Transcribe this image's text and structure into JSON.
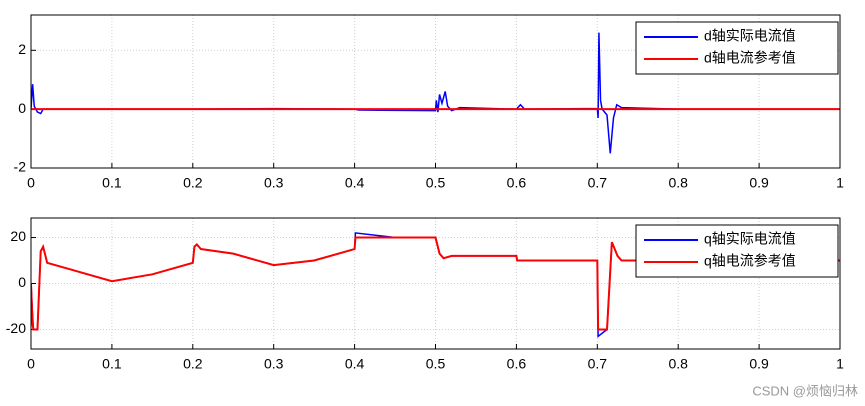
{
  "chart_data": [
    {
      "type": "line",
      "x": [
        0,
        0.002,
        0.004,
        0.008,
        0.012,
        0.015,
        0.1,
        0.2,
        0.3,
        0.4,
        0.405,
        0.5,
        0.501,
        0.503,
        0.505,
        0.508,
        0.512,
        0.515,
        0.52,
        0.53,
        0.6,
        0.605,
        0.61,
        0.7,
        0.701,
        0.702,
        0.704,
        0.706,
        0.712,
        0.716,
        0.72,
        0.724,
        0.73,
        0.8,
        0.9,
        1
      ],
      "series": [
        {
          "name": "d轴实际电流值",
          "color": "#0000ff",
          "values": [
            0,
            0.85,
            0.1,
            -0.1,
            -0.15,
            0,
            0,
            0,
            0.02,
            0,
            -0.03,
            -0.05,
            0.3,
            -0.1,
            0.5,
            0.2,
            0.6,
            0.1,
            -0.05,
            0.05,
            0,
            0.15,
            0,
            0.02,
            -0.3,
            2.6,
            0.3,
            0,
            -0.2,
            -1.5,
            -0.3,
            0.15,
            0.05,
            0,
            0,
            0
          ]
        },
        {
          "name": "d轴电流参考值",
          "color": "#ff0000",
          "values": [
            0,
            0,
            0,
            0,
            0,
            0,
            0,
            0,
            0,
            0,
            0,
            0,
            0,
            0,
            0,
            0,
            0,
            0,
            0,
            0,
            0,
            0,
            0,
            0,
            0,
            0,
            0,
            0,
            0,
            0,
            0,
            0,
            0,
            0,
            0,
            0
          ]
        }
      ],
      "xlim": [
        0,
        1
      ],
      "xticks": [
        0,
        0.1,
        0.2,
        0.3,
        0.4,
        0.5,
        0.6,
        0.7,
        0.8,
        0.9,
        1
      ],
      "ylim": [
        -2,
        3.2
      ],
      "yticks": [
        -2,
        0,
        2
      ],
      "grid": true,
      "legend": "top-right"
    },
    {
      "type": "line",
      "x": [
        0,
        0.002,
        0.003,
        0.008,
        0.012,
        0.015,
        0.02,
        0.05,
        0.1,
        0.15,
        0.2,
        0.202,
        0.205,
        0.21,
        0.25,
        0.3,
        0.35,
        0.4,
        0.401,
        0.45,
        0.5,
        0.505,
        0.51,
        0.52,
        0.6,
        0.601,
        0.7,
        0.701,
        0.712,
        0.718,
        0.725,
        0.73,
        0.8,
        0.9,
        1
      ],
      "series": [
        {
          "name": "q轴实际电流值",
          "color": "#0000ff",
          "values": [
            0,
            -14,
            -20,
            -20,
            14,
            16,
            9,
            6,
            1,
            4,
            9,
            16,
            17,
            15,
            13,
            8,
            10,
            15,
            22,
            20,
            20,
            13,
            11,
            12,
            12,
            10,
            10,
            -23,
            -20,
            18,
            12,
            10,
            10,
            10,
            10
          ]
        },
        {
          "name": "q轴电流参考值",
          "color": "#ff0000",
          "values": [
            0,
            -18,
            -20,
            -20,
            14,
            16,
            9,
            6,
            1,
            4,
            9,
            16,
            17,
            15,
            13,
            8,
            10,
            15,
            20,
            20,
            20,
            13,
            11,
            12,
            12,
            10,
            10,
            -20,
            -20,
            18,
            12,
            10,
            10,
            10,
            10
          ]
        }
      ],
      "xlim": [
        0,
        1
      ],
      "xticks": [
        0,
        0.1,
        0.2,
        0.3,
        0.4,
        0.5,
        0.6,
        0.7,
        0.8,
        0.9,
        1
      ],
      "ylim": [
        -28.5,
        28.5
      ],
      "yticks": [
        -20,
        0,
        20
      ],
      "grid": true,
      "legend": "top-right"
    }
  ],
  "watermark": "CSDN @烦恼归林"
}
